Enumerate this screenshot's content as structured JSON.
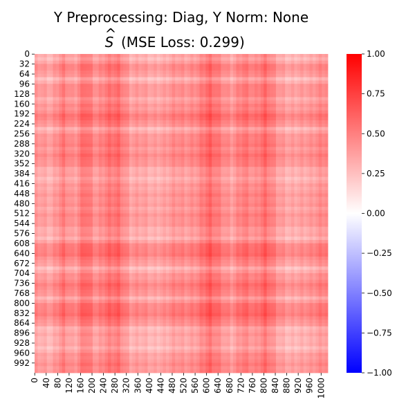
{
  "chart_data": {
    "type": "heatmap",
    "title_line1": "Y Preprocessing: Diag, Y Norm: None",
    "title_hat_symbol": "S",
    "title_line2_suffix": "(MSE Loss: 0.299)",
    "xlabel": "",
    "ylabel": "",
    "matrix_size": 1024,
    "xticks": [
      "0",
      "40",
      "80",
      "120",
      "160",
      "200",
      "240",
      "280",
      "320",
      "360",
      "400",
      "440",
      "480",
      "520",
      "560",
      "600",
      "640",
      "680",
      "720",
      "760",
      "800",
      "840",
      "880",
      "920",
      "960",
      "1000"
    ],
    "yticks": [
      "0",
      "32",
      "64",
      "96",
      "128",
      "160",
      "192",
      "224",
      "256",
      "288",
      "320",
      "352",
      "384",
      "416",
      "448",
      "480",
      "512",
      "544",
      "576",
      "608",
      "640",
      "672",
      "704",
      "736",
      "768",
      "800",
      "832",
      "864",
      "896",
      "928",
      "960",
      "992"
    ],
    "colorbar": {
      "vmin": -1.0,
      "vmax": 1.0,
      "ticks": [
        "1.00",
        "0.75",
        "0.50",
        "0.25",
        "0.00",
        "−0.25",
        "−0.50",
        "−0.75",
        "−1.00"
      ],
      "tick_values": [
        1.0,
        0.75,
        0.5,
        0.25,
        0.0,
        -0.25,
        -0.5,
        -0.75,
        -1.0
      ],
      "colormap": "bwr",
      "colors": {
        "low": "#0000ff",
        "mid": "#ffffff",
        "high": "#ff0000"
      }
    },
    "value_range_observed": [
      0.0,
      0.7
    ],
    "row_band_strength": [
      0.1,
      0.45,
      0.05,
      0.4,
      0.2,
      0.35,
      0.55,
      0.1,
      0.4,
      0.35,
      0.45,
      0.2,
      0.1,
      0.25,
      0.3,
      0.25,
      0.35,
      0.2,
      0.1,
      0.55,
      0.45,
      0.05,
      0.35,
      0.5,
      0.15,
      0.55,
      0.5,
      0.1,
      0.15,
      0.05,
      0.3,
      0.35
    ],
    "col_band_strength": [
      0.15,
      0.05,
      0.4,
      0.15,
      0.55,
      0.2,
      0.45,
      0.5,
      0.1,
      0.15,
      0.05,
      0.1,
      0.25,
      0.2,
      0.3,
      0.6,
      0.35,
      0.15,
      0.45,
      0.3,
      0.55,
      0.2,
      0.05,
      0.1,
      0.15,
      0.3
    ]
  }
}
